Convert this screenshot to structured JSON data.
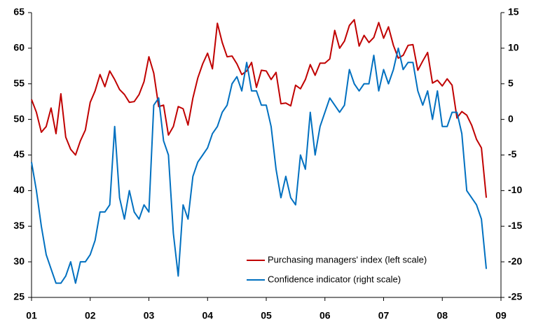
{
  "chart_data": {
    "type": "line",
    "x": [
      2001,
      2001.083,
      2001.167,
      2001.25,
      2001.333,
      2001.417,
      2001.5,
      2001.583,
      2001.667,
      2001.75,
      2001.833,
      2001.917,
      2002,
      2002.083,
      2002.167,
      2002.25,
      2002.333,
      2002.417,
      2002.5,
      2002.583,
      2002.667,
      2002.75,
      2002.833,
      2002.917,
      2003,
      2003.083,
      2003.167,
      2003.25,
      2003.333,
      2003.417,
      2003.5,
      2003.583,
      2003.667,
      2003.75,
      2003.833,
      2003.917,
      2004,
      2004.083,
      2004.167,
      2004.25,
      2004.333,
      2004.417,
      2004.5,
      2004.583,
      2004.667,
      2004.75,
      2004.833,
      2004.917,
      2005,
      2005.083,
      2005.167,
      2005.25,
      2005.333,
      2005.417,
      2005.5,
      2005.583,
      2005.667,
      2005.75,
      2005.833,
      2005.917,
      2006,
      2006.083,
      2006.167,
      2006.25,
      2006.333,
      2006.417,
      2006.5,
      2006.583,
      2006.667,
      2006.75,
      2006.833,
      2006.917,
      2007,
      2007.083,
      2007.167,
      2007.25,
      2007.333,
      2007.417,
      2007.5,
      2007.583,
      2007.667,
      2007.75,
      2007.833,
      2007.917,
      2008,
      2008.083,
      2008.167,
      2008.25,
      2008.333,
      2008.417,
      2008.5,
      2008.583,
      2008.667,
      2008.75
    ],
    "series": [
      {
        "name": "Purchasing managers' index (left scale)",
        "color": "#c00000",
        "axis": "y",
        "values": [
          52.8,
          51,
          48.2,
          49,
          51.6,
          48,
          53.6,
          47.5,
          45.8,
          45,
          47,
          48.5,
          52.4,
          54,
          56.3,
          54.6,
          56.8,
          55.6,
          54.2,
          53.5,
          52.4,
          52.5,
          53.5,
          55.3,
          58.8,
          56.5,
          51.8,
          52,
          47.8,
          49,
          51.8,
          51.5,
          49.2,
          53,
          55.8,
          57.8,
          59.3,
          57.1,
          63.5,
          60.8,
          58.8,
          58.9,
          57.8,
          56.3,
          56.8,
          58,
          54.5,
          56.9,
          56.8,
          55.6,
          56.6,
          52.2,
          52.3,
          51.9,
          54.8,
          54.3,
          55.6,
          57.7,
          56.2,
          57.9,
          57.9,
          58.5,
          62.5,
          60,
          61,
          63.2,
          64,
          60.3,
          61.8,
          60.8,
          61.5,
          63.6,
          61.4,
          63,
          60.4,
          58.6,
          59,
          60.4,
          60.5,
          56.9,
          58.2,
          59.4,
          55.1,
          55.5,
          54.7,
          55.7,
          54.8,
          50.2,
          51.1,
          50.6,
          49.2,
          47.2,
          46,
          39
        ]
      },
      {
        "name": "Confidence indicator (right scale)",
        "color": "#0070c0",
        "axis": "y2",
        "values": [
          -6,
          -10,
          -15,
          -19,
          -21,
          -23,
          -23,
          -22,
          -20,
          -23,
          -20,
          -20,
          -19,
          -17,
          -13,
          -13,
          -12,
          -1,
          -11,
          -14,
          -10,
          -13,
          -14,
          -12,
          -13,
          2,
          3,
          -3,
          -5,
          -16,
          -22,
          -12,
          -14,
          -8,
          -6,
          -5,
          -4,
          -2,
          -1,
          1,
          2,
          5,
          6,
          4,
          8,
          4,
          4,
          2,
          2,
          -1,
          -7,
          -11,
          -8,
          -11,
          -12,
          -5,
          -7,
          1,
          -5,
          -1,
          1,
          3,
          2,
          1,
          2,
          7,
          5,
          4,
          5,
          5,
          9,
          4,
          7,
          5,
          7,
          10,
          7,
          8,
          8,
          4,
          2,
          4,
          0,
          4,
          -1,
          -1,
          1,
          1,
          -2,
          -10,
          -11,
          -12,
          -14,
          -21
        ]
      }
    ],
    "xlim": [
      2001,
      2009
    ],
    "xticks": [
      {
        "value": 2001,
        "label": "01"
      },
      {
        "value": 2002,
        "label": "02"
      },
      {
        "value": 2003,
        "label": "03"
      },
      {
        "value": 2004,
        "label": "04"
      },
      {
        "value": 2005,
        "label": "05"
      },
      {
        "value": 2006,
        "label": "06"
      },
      {
        "value": 2007,
        "label": "07"
      },
      {
        "value": 2008,
        "label": "08"
      },
      {
        "value": 2009,
        "label": "09"
      }
    ],
    "ylim": [
      25,
      65
    ],
    "yticks": [
      25,
      30,
      35,
      40,
      45,
      50,
      55,
      60,
      65
    ],
    "y2lim": [
      -25,
      15
    ],
    "y2ticks": [
      -25,
      -20,
      -15,
      -10,
      -5,
      0,
      5,
      10,
      15
    ],
    "grid": false,
    "legend": "lower right"
  }
}
